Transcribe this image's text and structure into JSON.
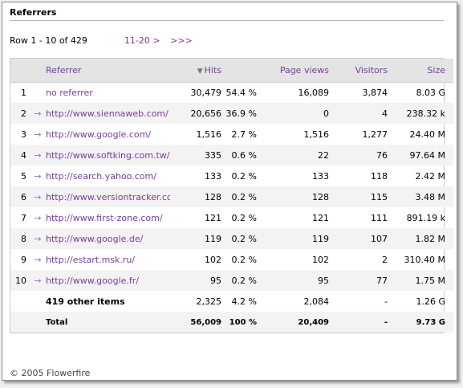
{
  "section": {
    "title": "Referrers"
  },
  "pager": {
    "range_text": "Row 1 - 10 of 429",
    "next_label": "11-20 >",
    "last_label": ">>>"
  },
  "table": {
    "headers": {
      "referrer": "Referrer",
      "hits_sort_icon": "triangle-down-icon",
      "hits": "Hits",
      "page_views": "Page views",
      "visitors": "Visitors",
      "size": "Size"
    },
    "rows": [
      {
        "num": "1",
        "arrow": "",
        "referrer": "no referrer",
        "hits": "30,479",
        "pct": "54.4 %",
        "page_views": "16,089",
        "visitors": "3,874",
        "size": "8.03 G"
      },
      {
        "num": "2",
        "arrow": "→",
        "referrer": "http://www.siennaweb.com/",
        "hits": "20,656",
        "pct": "36.9 %",
        "page_views": "0",
        "visitors": "4",
        "size": "238.32 k"
      },
      {
        "num": "3",
        "arrow": "→",
        "referrer": "http://www.google.com/",
        "hits": "1,516",
        "pct": "2.7 %",
        "page_views": "1,516",
        "visitors": "1,277",
        "size": "24.40 M"
      },
      {
        "num": "4",
        "arrow": "→",
        "referrer": "http://www.softking.com.tw/",
        "hits": "335",
        "pct": "0.6 %",
        "page_views": "22",
        "visitors": "76",
        "size": "97.64 M"
      },
      {
        "num": "5",
        "arrow": "→",
        "referrer": "http://search.yahoo.com/",
        "hits": "133",
        "pct": "0.2 %",
        "page_views": "133",
        "visitors": "118",
        "size": "2.42 M"
      },
      {
        "num": "6",
        "arrow": "→",
        "referrer": "http://www.versiontracker.com/",
        "hits": "128",
        "pct": "0.2 %",
        "page_views": "128",
        "visitors": "115",
        "size": "3.48 M"
      },
      {
        "num": "7",
        "arrow": "→",
        "referrer": "http://www.first-zone.com/",
        "hits": "121",
        "pct": "0.2 %",
        "page_views": "121",
        "visitors": "111",
        "size": "891.19 k"
      },
      {
        "num": "8",
        "arrow": "→",
        "referrer": "http://www.google.de/",
        "hits": "119",
        "pct": "0.2 %",
        "page_views": "119",
        "visitors": "107",
        "size": "1.82 M"
      },
      {
        "num": "9",
        "arrow": "→",
        "referrer": "http://estart.msk.ru/",
        "hits": "102",
        "pct": "0.2 %",
        "page_views": "102",
        "visitors": "2",
        "size": "310.40 M"
      },
      {
        "num": "10",
        "arrow": "→",
        "referrer": "http://www.google.fr/",
        "hits": "95",
        "pct": "0.2 %",
        "page_views": "95",
        "visitors": "77",
        "size": "1.75 M"
      }
    ],
    "other_items": {
      "label": "419 other items",
      "hits": "2,325",
      "pct": "4.2 %",
      "page_views": "2,084",
      "visitors": "-",
      "size": "1.26 G"
    },
    "total": {
      "label": "Total",
      "hits": "56,009",
      "pct": "100 %",
      "page_views": "20,409",
      "visitors": "-",
      "size": "9.73 G"
    }
  },
  "footer": {
    "text": "© 2005 Flowerfire"
  },
  "colors": {
    "link": "#7a3ba0",
    "header_bg": "#e4e4e4",
    "stripe_bg": "#f3f3f3",
    "arrow": "#9a6fbd"
  }
}
